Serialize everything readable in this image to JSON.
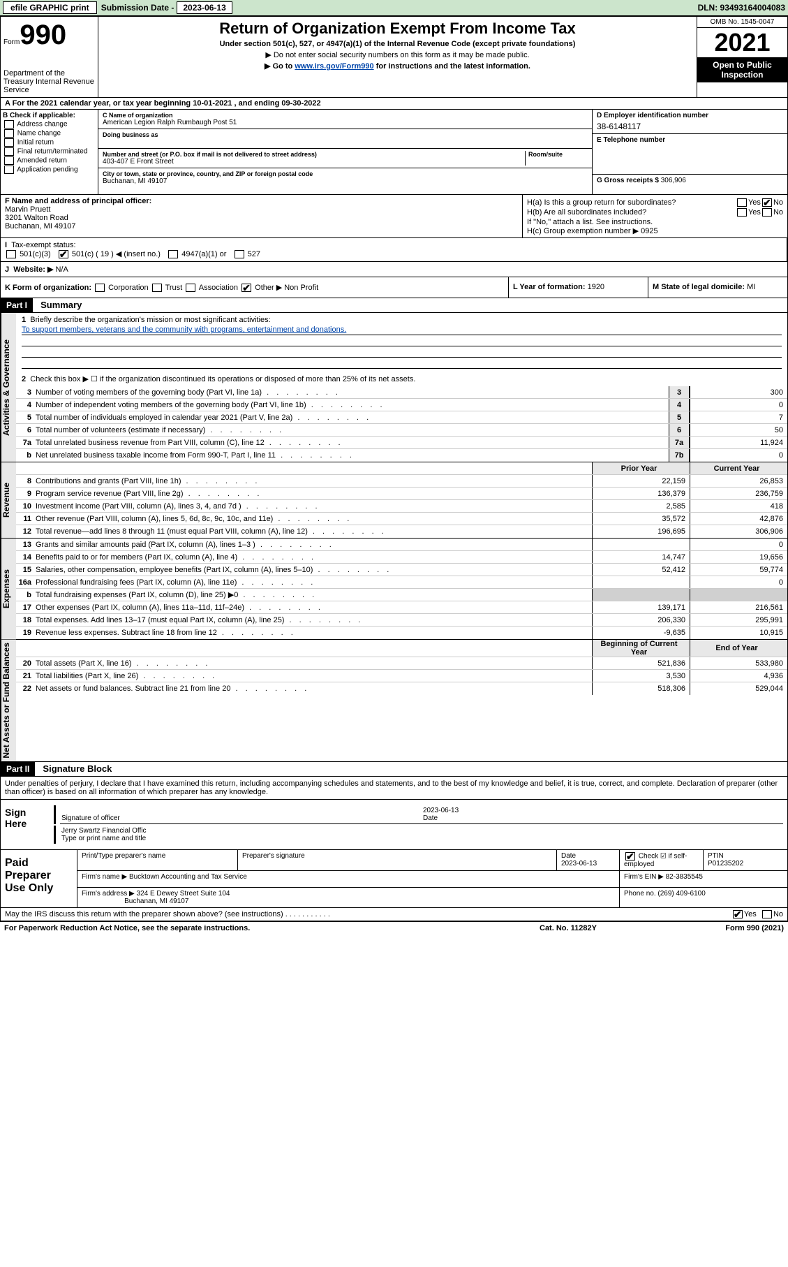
{
  "topbar": {
    "efile_btn": "efile GRAPHIC print",
    "sub_label": "Submission Date -",
    "sub_date": "2023-06-13",
    "dln": "DLN: 93493164004083"
  },
  "formhead": {
    "form_word": "Form",
    "form_num": "990",
    "dept": "Department of the Treasury\nInternal Revenue Service",
    "title": "Return of Organization Exempt From Income Tax",
    "sub1": "Under section 501(c), 527, or 4947(a)(1) of the Internal Revenue Code (except private foundations)",
    "sub2a": "▶ Do not enter social security numbers on this form as it may be made public.",
    "sub2b_pre": "▶ Go to ",
    "sub2b_link": "www.irs.gov/Form990",
    "sub2b_post": " for instructions and the latest information.",
    "omb": "OMB No. 1545-0047",
    "year": "2021",
    "open": "Open to Public Inspection"
  },
  "taxyear": {
    "text_a": "A For the 2021 calendar year, or tax year beginning ",
    "begin": "10-01-2021",
    "text_b": " , and ending ",
    "end": "09-30-2022"
  },
  "colB": {
    "label": "B Check if applicable:",
    "opts": [
      "Address change",
      "Name change",
      "Initial return",
      "Final return/terminated",
      "Amended return",
      "Application pending"
    ]
  },
  "colC": {
    "name_label": "C Name of organization",
    "name": "American Legion Ralph Rumbaugh Post 51",
    "dba_label": "Doing business as",
    "dba": "",
    "addr_label": "Number and street (or P.O. box if mail is not delivered to street address)",
    "room_label": "Room/suite",
    "addr": "403-407 E Front Street",
    "city_label": "City or town, state or province, country, and ZIP or foreign postal code",
    "city": "Buchanan, MI  49107"
  },
  "colDE": {
    "d_label": "D Employer identification number",
    "d_val": "38-6148117",
    "e_label": "E Telephone number",
    "e_val": "",
    "g_label": "G Gross receipts $",
    "g_val": "306,906"
  },
  "secF": {
    "label": "F Name and address of principal officer:",
    "name": "Marvin Pruett",
    "addr1": "3201 Walton Road",
    "addr2": "Buchanan, MI  49107"
  },
  "secH": {
    "ha": "H(a)  Is this a group return for subordinates?",
    "hb": "H(b)  Are all subordinates included?",
    "hb_note": "If \"No,\" attach a list. See instructions.",
    "hc_label": "H(c)  Group exemption number ▶",
    "hc_val": "0925",
    "yes": "Yes",
    "no": "No"
  },
  "rowI": {
    "label": "Tax-exempt status:",
    "c3": "501(c)(3)",
    "c": "501(c) ( 19 ) ◀ (insert no.)",
    "a1": "4947(a)(1) or",
    "s527": "527"
  },
  "rowJ": {
    "label": "Website: ▶",
    "val": "N/A"
  },
  "rowK": {
    "label": "K Form of organization:",
    "opts": [
      "Corporation",
      "Trust",
      "Association",
      "Other ▶"
    ],
    "other_val": "Non Profit"
  },
  "rowL": {
    "label": "L Year of formation:",
    "val": "1920"
  },
  "rowM": {
    "label": "M State of legal domicile:",
    "val": "MI"
  },
  "part1": {
    "hdr": "Part I",
    "title": "Summary"
  },
  "summary": {
    "q1_label": "Briefly describe the organization's mission or most significant activities:",
    "q1_val": "To support members, veterans and the community with programs, entertainment and donations.",
    "q2": "Check this box ▶ ☐  if the organization discontinued its operations or disposed of more than 25% of its net assets.",
    "rows": [
      {
        "n": "3",
        "d": "Number of voting members of the governing body (Part VI, line 1a)",
        "box": "3",
        "v": "300"
      },
      {
        "n": "4",
        "d": "Number of independent voting members of the governing body (Part VI, line 1b)",
        "box": "4",
        "v": "0"
      },
      {
        "n": "5",
        "d": "Total number of individuals employed in calendar year 2021 (Part V, line 2a)",
        "box": "5",
        "v": "7"
      },
      {
        "n": "6",
        "d": "Total number of volunteers (estimate if necessary)",
        "box": "6",
        "v": "50"
      },
      {
        "n": "7a",
        "d": "Total unrelated business revenue from Part VIII, column (C), line 12",
        "box": "7a",
        "v": "11,924"
      },
      {
        "n": "b",
        "d": "Net unrelated business taxable income from Form 990-T, Part I, line 11",
        "box": "7b",
        "v": "0"
      }
    ]
  },
  "revenue": {
    "hdr_prior": "Prior Year",
    "hdr_curr": "Current Year",
    "rows": [
      {
        "n": "8",
        "d": "Contributions and grants (Part VIII, line 1h)",
        "p": "22,159",
        "c": "26,853"
      },
      {
        "n": "9",
        "d": "Program service revenue (Part VIII, line 2g)",
        "p": "136,379",
        "c": "236,759"
      },
      {
        "n": "10",
        "d": "Investment income (Part VIII, column (A), lines 3, 4, and 7d )",
        "p": "2,585",
        "c": "418"
      },
      {
        "n": "11",
        "d": "Other revenue (Part VIII, column (A), lines 5, 6d, 8c, 9c, 10c, and 11e)",
        "p": "35,572",
        "c": "42,876"
      },
      {
        "n": "12",
        "d": "Total revenue—add lines 8 through 11 (must equal Part VIII, column (A), line 12)",
        "p": "196,695",
        "c": "306,906"
      }
    ]
  },
  "expenses": {
    "rows": [
      {
        "n": "13",
        "d": "Grants and similar amounts paid (Part IX, column (A), lines 1–3 )",
        "p": "",
        "c": "0"
      },
      {
        "n": "14",
        "d": "Benefits paid to or for members (Part IX, column (A), line 4)",
        "p": "14,747",
        "c": "19,656"
      },
      {
        "n": "15",
        "d": "Salaries, other compensation, employee benefits (Part IX, column (A), lines 5–10)",
        "p": "52,412",
        "c": "59,774"
      },
      {
        "n": "16a",
        "d": "Professional fundraising fees (Part IX, column (A), line 11e)",
        "p": "",
        "c": "0"
      },
      {
        "n": "b",
        "d": "Total fundraising expenses (Part IX, column (D), line 25) ▶0",
        "p": "GREY",
        "c": "GREY"
      },
      {
        "n": "17",
        "d": "Other expenses (Part IX, column (A), lines 11a–11d, 11f–24e)",
        "p": "139,171",
        "c": "216,561"
      },
      {
        "n": "18",
        "d": "Total expenses. Add lines 13–17 (must equal Part IX, column (A), line 25)",
        "p": "206,330",
        "c": "295,991"
      },
      {
        "n": "19",
        "d": "Revenue less expenses. Subtract line 18 from line 12",
        "p": "-9,635",
        "c": "10,915"
      }
    ]
  },
  "netassets": {
    "hdr_beg": "Beginning of Current Year",
    "hdr_end": "End of Year",
    "rows": [
      {
        "n": "20",
        "d": "Total assets (Part X, line 16)",
        "p": "521,836",
        "c": "533,980"
      },
      {
        "n": "21",
        "d": "Total liabilities (Part X, line 26)",
        "p": "3,530",
        "c": "4,936"
      },
      {
        "n": "22",
        "d": "Net assets or fund balances. Subtract line 21 from line 20",
        "p": "518,306",
        "c": "529,044"
      }
    ]
  },
  "side": {
    "ag": "Activities & Governance",
    "rev": "Revenue",
    "exp": "Expenses",
    "na": "Net Assets or Fund Balances"
  },
  "part2": {
    "hdr": "Part II",
    "title": "Signature Block"
  },
  "sig": {
    "decl": "Under penalties of perjury, I declare that I have examined this return, including accompanying schedules and statements, and to the best of my knowledge and belief, it is true, correct, and complete. Declaration of preparer (other than officer) is based on all information of which preparer has any knowledge.",
    "sign_here": "Sign Here",
    "sig_officer": "Signature of officer",
    "date_label": "Date",
    "date_val": "2023-06-13",
    "name": "Jerry Swartz Financial Offic",
    "name_label": "Type or print name and title"
  },
  "prep": {
    "label": "Paid Preparer Use Only",
    "pt_name_label": "Print/Type preparer's name",
    "pt_sig_label": "Preparer's signature",
    "pt_date_label": "Date",
    "pt_date": "2023-06-13",
    "pt_check": "Check ☑ if self-employed",
    "ptin_label": "PTIN",
    "ptin": "P01235202",
    "firm_name_label": "Firm's name    ▶",
    "firm_name": "Bucktown Accounting and Tax Service",
    "firm_ein_label": "Firm's EIN ▶",
    "firm_ein": "82-3835545",
    "firm_addr_label": "Firm's address ▶",
    "firm_addr1": "324 E Dewey Street Suite 104",
    "firm_addr2": "Buchanan, MI  49107",
    "phone_label": "Phone no.",
    "phone": "(269) 409-6100"
  },
  "discuss": {
    "q": "May the IRS discuss this return with the preparer shown above? (see instructions)",
    "yes": "Yes",
    "no": "No"
  },
  "footer": {
    "pra": "For Paperwork Reduction Act Notice, see the separate instructions.",
    "cat": "Cat. No. 11282Y",
    "form": "Form 990 (2021)"
  }
}
